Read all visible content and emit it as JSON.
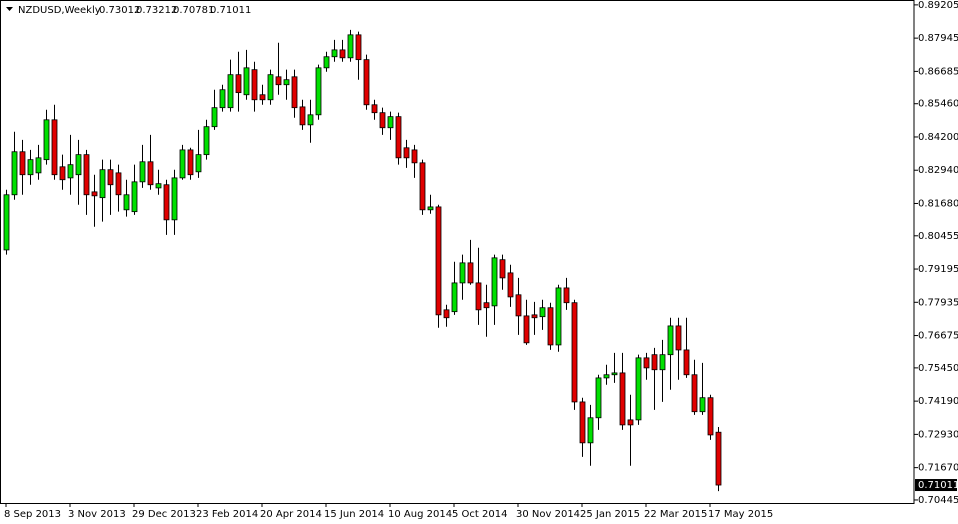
{
  "chart_data": {
    "type": "candlestick",
    "title": "NZDUSD,Weekly",
    "categories": [
      "8 Sep 2013",
      null,
      null,
      null,
      null,
      null,
      null,
      null,
      "3 Nov 2013",
      null,
      null,
      null,
      null,
      null,
      null,
      null,
      "29 Dec 2013",
      null,
      null,
      null,
      null,
      null,
      null,
      null,
      "23 Feb 2014",
      null,
      null,
      null,
      null,
      null,
      null,
      null,
      "20 Apr 2014",
      null,
      null,
      null,
      null,
      null,
      null,
      null,
      "15 Jun 2014",
      null,
      null,
      null,
      null,
      null,
      null,
      null,
      "10 Aug 2014",
      null,
      null,
      null,
      null,
      null,
      null,
      null,
      "5 Oct 2014",
      null,
      null,
      null,
      null,
      null,
      null,
      null,
      "30 Nov 2014",
      null,
      null,
      null,
      null,
      null,
      null,
      null,
      "25 Jan 2015",
      null,
      null,
      null,
      null,
      null,
      null,
      null,
      "22 Mar 2015",
      null,
      null,
      null,
      null,
      null,
      null,
      null,
      "17 May 2015",
      null
    ],
    "open": [
      0.7992,
      0.8201,
      0.8364,
      0.8277,
      0.8284,
      0.8334,
      0.8485,
      0.8307,
      0.8265,
      0.8277,
      0.8353,
      0.8212,
      0.819,
      0.8296,
      0.8284,
      0.8144,
      0.8137,
      0.825,
      0.8326,
      0.8227,
      0.8239,
      0.8106,
      0.8265,
      0.8371,
      0.8288,
      0.8353,
      0.8459,
      0.8531,
      0.8531,
      0.8656,
      0.858,
      0.8675,
      0.858,
      0.8561,
      0.8648,
      0.8618,
      0.8648,
      0.8534,
      0.8466,
      0.8504,
      0.8682,
      0.8724,
      0.875,
      0.872,
      0.8807,
      0.8713,
      0.8542,
      0.8512,
      0.8455,
      0.8497,
      0.8379,
      0.8371,
      0.8322,
      0.8144,
      0.8155,
      0.7765,
      0.7758,
      0.7867,
      0.7943,
      0.7867,
      0.7792,
      0.778,
      0.7955,
      0.7905,
      0.7822,
      0.7742,
      0.7746,
      0.7739,
      0.7773,
      0.7632,
      0.7848,
      0.7792,
      0.7416,
      0.7261,
      0.7356,
      0.7507,
      0.7519,
      0.7526,
      0.7348,
      0.7348,
      0.7583,
      0.7595,
      0.7538,
      0.7595,
      0.7704,
      0.7613,
      0.7519,
      0.7379,
      0.7432,
      0.73012
    ],
    "high": [
      0.822,
      0.844,
      0.8409,
      0.8371,
      0.839,
      0.8523,
      0.8542,
      0.8353,
      0.8428,
      0.8409,
      0.8371,
      0.8277,
      0.8334,
      0.8334,
      0.8315,
      0.8258,
      0.8315,
      0.839,
      0.8428,
      0.8296,
      0.8258,
      0.8296,
      0.839,
      0.8379,
      0.8447,
      0.8485,
      0.8599,
      0.8618,
      0.8713,
      0.8743,
      0.875,
      0.8705,
      0.8618,
      0.8675,
      0.8777,
      0.8675,
      0.8675,
      0.8561,
      0.8561,
      0.8694,
      0.8743,
      0.8788,
      0.8788,
      0.8826,
      0.8819,
      0.8732,
      0.8561,
      0.8531,
      0.8516,
      0.8512,
      0.8409,
      0.839,
      0.8334,
      0.8201,
      0.8163,
      0.7784,
      0.7947,
      0.7974,
      0.803,
      0.8,
      0.786,
      0.7974,
      0.7974,
      0.7936,
      0.7886,
      0.7803,
      0.7795,
      0.7803,
      0.7792,
      0.786,
      0.7886,
      0.7803,
      0.7432,
      0.7405,
      0.7519,
      0.7557,
      0.7602,
      0.7602,
      0.7443,
      0.7595,
      0.7602,
      0.7621,
      0.7651,
      0.7735,
      0.7735,
      0.7735,
      0.7576,
      0.7564,
      0.7443,
      0.73212
    ],
    "low": [
      0.7974,
      0.8182,
      0.8201,
      0.8239,
      0.8258,
      0.8315,
      0.8258,
      0.822,
      0.8201,
      0.8163,
      0.8125,
      0.808,
      0.8099,
      0.8125,
      0.8137,
      0.8118,
      0.8125,
      0.8227,
      0.822,
      0.8201,
      0.8049,
      0.8049,
      0.8258,
      0.8258,
      0.8265,
      0.8334,
      0.8447,
      0.8516,
      0.8516,
      0.8516,
      0.8561,
      0.8516,
      0.8542,
      0.8542,
      0.858,
      0.8561,
      0.8493,
      0.8447,
      0.8398,
      0.8485,
      0.8667,
      0.8705,
      0.8705,
      0.8705,
      0.8637,
      0.8523,
      0.8485,
      0.8428,
      0.8409,
      0.8315,
      0.8303,
      0.8265,
      0.8125,
      0.8129,
      0.7697,
      0.7701,
      0.7746,
      0.7803,
      0.786,
      0.7708,
      0.7663,
      0.7708,
      0.7841,
      0.7776,
      0.767,
      0.7632,
      0.767,
      0.7689,
      0.7613,
      0.7606,
      0.7765,
      0.7386,
      0.7208,
      0.7174,
      0.731,
      0.7481,
      0.7488,
      0.731,
      0.7174,
      0.7329,
      0.75,
      0.7386,
      0.7416,
      0.7462,
      0.75,
      0.7507,
      0.7367,
      0.7367,
      0.7272,
      0.70781
    ],
    "close": [
      0.8201,
      0.8364,
      0.8277,
      0.8334,
      0.8341,
      0.8485,
      0.8277,
      0.8258,
      0.8315,
      0.8353,
      0.8201,
      0.8197,
      0.8296,
      0.8239,
      0.8201,
      0.8201,
      0.825,
      0.8326,
      0.8239,
      0.8243,
      0.8106,
      0.8265,
      0.8371,
      0.8277,
      0.8353,
      0.8459,
      0.8531,
      0.8599,
      0.8656,
      0.8588,
      0.8682,
      0.8561,
      0.8561,
      0.8656,
      0.8618,
      0.8637,
      0.8531,
      0.8466,
      0.8504,
      0.8682,
      0.8724,
      0.875,
      0.872,
      0.8807,
      0.8713,
      0.8542,
      0.8512,
      0.8455,
      0.8497,
      0.8341,
      0.8341,
      0.8322,
      0.8144,
      0.8155,
      0.7746,
      0.7735,
      0.7867,
      0.7943,
      0.7867,
      0.7765,
      0.7773,
      0.7962,
      0.7886,
      0.7814,
      0.7742,
      0.764,
      0.7735,
      0.7773,
      0.7632,
      0.7848,
      0.7792,
      0.7416,
      0.7261,
      0.7356,
      0.7507,
      0.7519,
      0.7526,
      0.7329,
      0.7329,
      0.7583,
      0.7545,
      0.7538,
      0.7595,
      0.7704,
      0.7613,
      0.7519,
      0.7379,
      0.7432,
      0.7291,
      0.71011
    ],
    "up_color": "#00e000",
    "down_color": "#e00000",
    "ylim": [
      0.7033,
      0.8939
    ],
    "yticks": [
      0.89205,
      0.87945,
      0.86685,
      {
        "value": 0.8546,
        "label": "0.85460"
      },
      {
        "value": 0.842,
        "label": "0.84200"
      },
      {
        "value": 0.8294,
        "label": "0.82940"
      },
      {
        "value": 0.8168,
        "label": "0.81680"
      },
      0.80455,
      0.79195,
      0.77935,
      0.76675,
      {
        "value": 0.7545,
        "label": "0.75450"
      },
      {
        "value": 0.7419,
        "label": "0.74190"
      },
      {
        "value": 0.7293,
        "label": "0.72930"
      },
      {
        "value": 0.7167,
        "label": "0.71670"
      },
      0.70445
    ],
    "grid": false
  }
}
